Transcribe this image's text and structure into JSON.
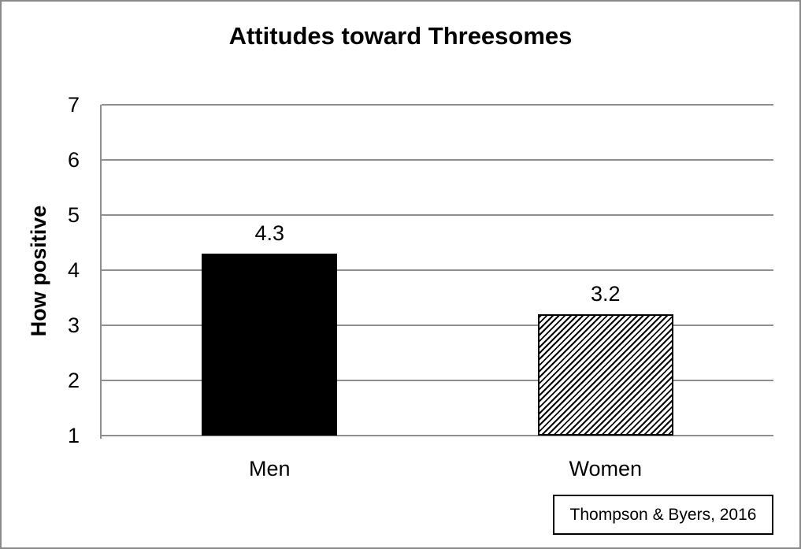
{
  "chart_data": {
    "type": "bar",
    "title": "Attitudes toward Threesomes",
    "ylabel": "How positive",
    "xlabel": "",
    "categories": [
      "Men",
      "Women"
    ],
    "values": [
      4.3,
      3.2
    ],
    "value_labels": [
      "4.3",
      "3.2"
    ],
    "ylim": [
      1,
      7
    ],
    "yticks": [
      1,
      2,
      3,
      4,
      5,
      6,
      7
    ],
    "grid": "horizontal",
    "legend": "none",
    "bar_styles": [
      {
        "fill": "solid",
        "color": "#000000"
      },
      {
        "fill": "diagonal-hatch",
        "color": "#000000",
        "background": "#ffffff"
      }
    ],
    "annotation": "Thompson & Byers, 2016"
  },
  "colors": {
    "gridline": "#8f8f8f",
    "axis": "#8f8f8f",
    "outer_border": "#8a8a8a",
    "text": "#000000",
    "annotation_border": "#000000",
    "bar_men": "#000000",
    "bar_women_background": "#ffffff"
  }
}
